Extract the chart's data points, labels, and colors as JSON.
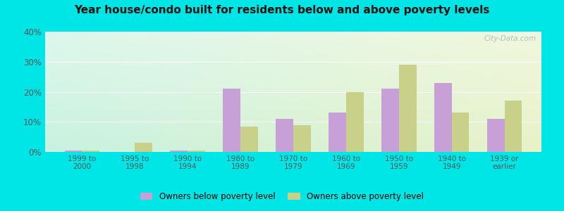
{
  "title": "Year house/condo built for residents below and above poverty levels",
  "categories": [
    "1999 to\n2000",
    "1995 to\n1998",
    "1990 to\n1994",
    "1980 to\n1989",
    "1970 to\n1979",
    "1960 to\n1969",
    "1950 to\n1959",
    "1940 to\n1949",
    "1939 or\nearlier"
  ],
  "below_poverty": [
    0.5,
    0.0,
    0.5,
    21.0,
    11.0,
    13.0,
    21.0,
    23.0,
    11.0
  ],
  "above_poverty": [
    0.5,
    3.0,
    0.5,
    8.5,
    9.0,
    20.0,
    29.0,
    13.0,
    17.0
  ],
  "below_color": "#c8a0d8",
  "above_color": "#c8d08a",
  "ylim": [
    0,
    40
  ],
  "yticks": [
    0,
    10,
    20,
    30,
    40
  ],
  "outer_background": "#00e5e5",
  "title_fontsize": 11,
  "legend_below_label": "Owners below poverty level",
  "legend_above_label": "Owners above poverty level",
  "watermark": "City-Data.com"
}
